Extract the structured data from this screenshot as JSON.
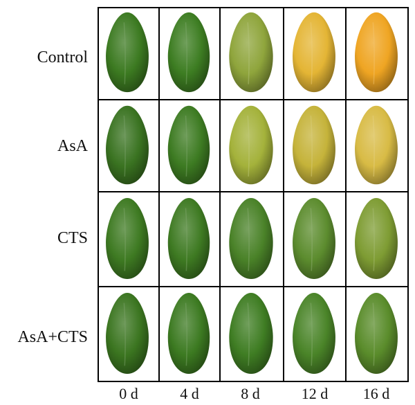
{
  "figure": {
    "treatments": [
      "Control",
      "AsA",
      "CTS",
      "AsA+CTS"
    ],
    "days": [
      "0 d",
      "4 d",
      "8 d",
      "12 d",
      "16 d"
    ],
    "fruit_colors": [
      [
        "#3c7a21",
        "#3d7d22",
        "#8fa53c",
        "#e4b535",
        "#efa523"
      ],
      [
        "#3a7321",
        "#3d7b22",
        "#a4b23b",
        "#c5b33a",
        "#d8bb45"
      ],
      [
        "#3e7a22",
        "#3e7a22",
        "#4a8228",
        "#5c8c2e",
        "#7e9c33"
      ],
      [
        "#3b7520",
        "#3c7a21",
        "#3f7d23",
        "#4a8428",
        "#5a8c2b"
      ]
    ],
    "border_color": "#000000"
  }
}
